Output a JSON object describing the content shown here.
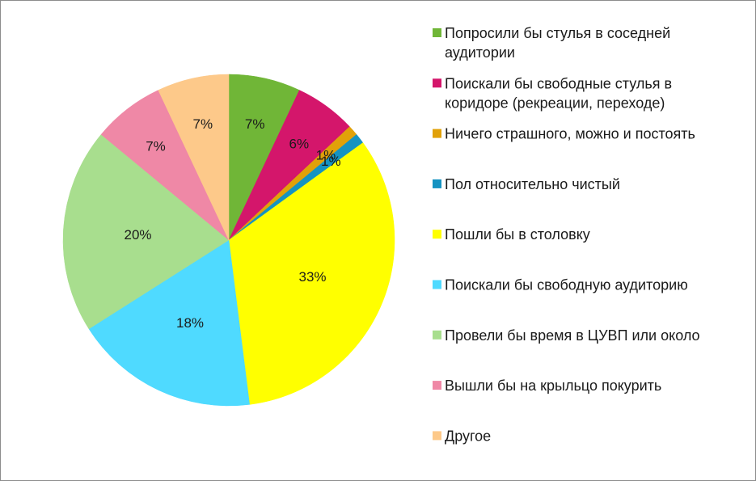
{
  "chart_data": {
    "type": "pie",
    "legend_position": "right",
    "slices": [
      {
        "label": "Попросили бы стулья в соседней аудитории",
        "value": 7,
        "value_label": "7%",
        "color": "#70b637"
      },
      {
        "label": "Поискали бы свободные стулья в коридоре (рекреации, переходе)",
        "value": 6,
        "value_label": "6%",
        "color": "#d4166b"
      },
      {
        "label": "Ничего страшного, можно и постоять",
        "value": 1,
        "value_label": "1%",
        "color": "#e1a109"
      },
      {
        "label": "Пол относительно чистый",
        "value": 1,
        "value_label": "1%",
        "color": "#1593c2"
      },
      {
        "label": "Пошли бы в столовку",
        "value": 33,
        "value_label": "33%",
        "color": "#ffff00"
      },
      {
        "label": "Поискали бы свободную аудиторию",
        "value": 18,
        "value_label": "18%",
        "color": "#4fdaff"
      },
      {
        "label": "Провели бы время в ЦУВП или около",
        "value": 20,
        "value_label": "20%",
        "color": "#a8de8e"
      },
      {
        "label": "Вышли бы на крыльцо покурить",
        "value": 7,
        "value_label": "7%",
        "color": "#ef88a6"
      },
      {
        "label": "Другое",
        "value": 7,
        "value_label": "7%",
        "color": "#fdc98a"
      }
    ]
  }
}
